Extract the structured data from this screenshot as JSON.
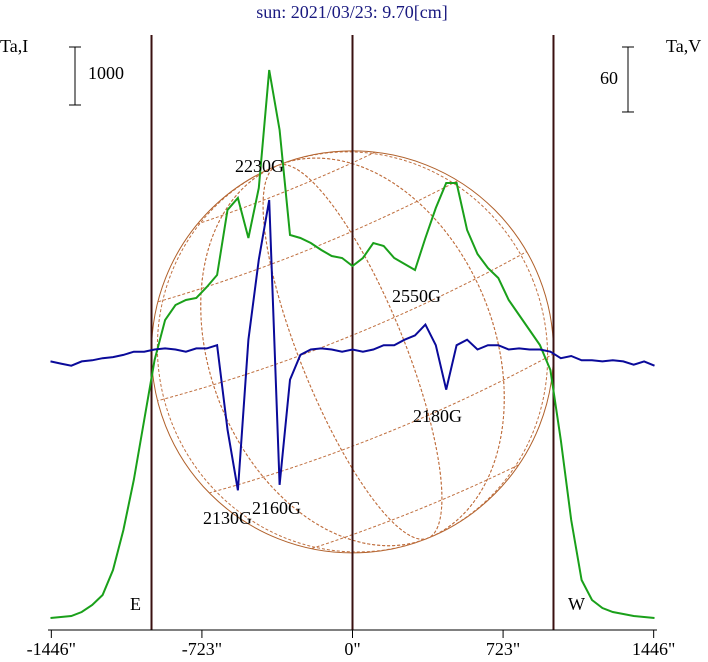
{
  "chart_data": {
    "type": "line",
    "title": "sun: 2021/03/23: 9.70[cm]",
    "y_label": "Ta,I",
    "y2_label": "Ta,V",
    "x": [
      -1450,
      -1400,
      -1350,
      -1300,
      -1250,
      -1200,
      -1150,
      -1100,
      -1050,
      -1000,
      -950,
      -900,
      -850,
      -800,
      -750,
      -700,
      -650,
      -600,
      -550,
      -500,
      -450,
      -400,
      -350,
      -300,
      -250,
      -200,
      -150,
      -100,
      -50,
      0,
      50,
      100,
      150,
      200,
      250,
      300,
      350,
      400,
      450,
      500,
      550,
      600,
      650,
      700,
      750,
      800,
      850,
      900,
      950,
      1000,
      1050,
      1100,
      1150,
      1200,
      1250,
      1300,
      1350,
      1400,
      1450
    ],
    "series": [
      {
        "name": "I",
        "color": "#1aa01a",
        "axis": "y",
        "values": [
          0,
          17,
          34,
          103,
          224,
          397,
          828,
          1517,
          2379,
          3414,
          4448,
          5138,
          5396,
          5483,
          5517,
          5706,
          5913,
          7035,
          7241,
          6552,
          7414,
          9448,
          8413,
          6603,
          6552,
          6465,
          6345,
          6241,
          6207,
          6069,
          6207,
          6465,
          6414,
          6207,
          6103,
          6000,
          6552,
          7069,
          7500,
          7500,
          6689,
          6276,
          6034,
          5862,
          5483,
          5224,
          4965,
          4707,
          4276,
          3069,
          1690,
          655,
          310,
          172,
          103,
          69,
          34,
          17,
          0
        ]
      },
      {
        "name": "V",
        "color": "#0a0a9a",
        "axis": "y2",
        "values": [
          -6,
          -8,
          -10,
          -6,
          -5,
          -3,
          -2,
          0,
          3,
          3,
          5,
          6,
          5,
          3,
          6,
          6,
          9,
          -69,
          -125,
          14,
          88,
          143,
          -120,
          -23,
          0,
          5,
          6,
          5,
          3,
          5,
          3,
          5,
          9,
          9,
          14,
          18,
          28,
          9,
          -32,
          9,
          14,
          5,
          9,
          9,
          5,
          6,
          5,
          5,
          3,
          -3,
          -1,
          -5,
          -5,
          -6,
          -5,
          -6,
          -9,
          -6,
          -10
        ]
      }
    ],
    "xlim": [
      -1462,
      1462
    ],
    "ylim": [
      -207,
      10138
    ],
    "y2lim": [
      -254,
      300
    ],
    "xticks": [
      {
        "value": -1446,
        "label": "-1446\""
      },
      {
        "value": -723,
        "label": "-723\""
      },
      {
        "value": 0,
        "label": "0\""
      },
      {
        "value": 723,
        "label": "723\""
      },
      {
        "value": 1446,
        "label": "1446\""
      }
    ],
    "vlines": [
      -965,
      0,
      965
    ],
    "scale_bar": 1000,
    "scale_bar2": 60,
    "annotations": [
      "2230G",
      "2550G",
      "2180G",
      "2130G",
      "2160G",
      "E",
      "W"
    ]
  }
}
